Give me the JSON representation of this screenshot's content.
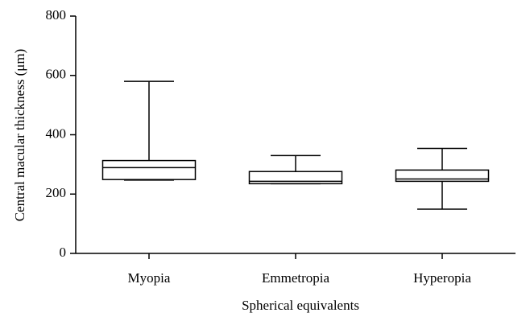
{
  "chart_data": {
    "type": "box",
    "x_label": "Spherical equivalents",
    "y_label": "Central macular thickness (μm)",
    "categories": [
      "Myopia",
      "Emmetropia",
      "Hyperopia"
    ],
    "boxes": [
      {
        "min": 247,
        "q1": 249,
        "median": 289,
        "q3": 313,
        "max": 580
      },
      {
        "min": 235,
        "q1": 235,
        "median": 243,
        "q3": 276,
        "max": 330
      },
      {
        "min": 149,
        "q1": 243,
        "median": 251,
        "q3": 281,
        "max": 354
      }
    ],
    "ylim": [
      0,
      800
    ],
    "yticks": [
      0,
      200,
      400,
      600,
      800
    ]
  }
}
